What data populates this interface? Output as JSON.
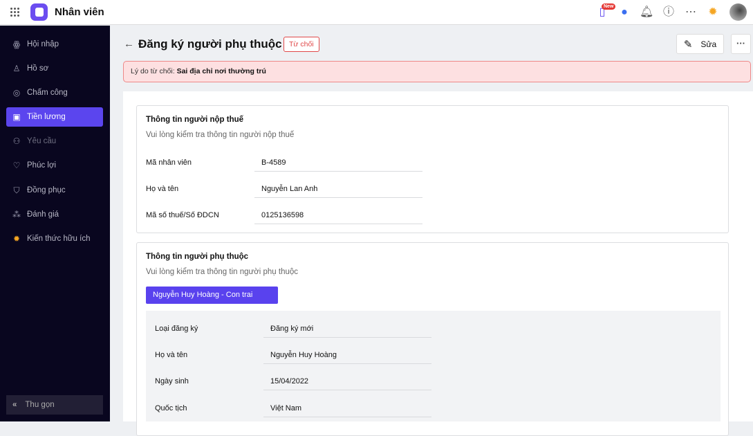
{
  "header": {
    "app_title": "Nhân viên",
    "new_badge": "New"
  },
  "sidebar": {
    "items": [
      {
        "label": "Hội nhập",
        "icon": "people-icon"
      },
      {
        "label": "Hồ sơ",
        "icon": "user-icon"
      },
      {
        "label": "Chấm công",
        "icon": "fingerprint-icon"
      },
      {
        "label": "Tiền lương",
        "icon": "wallet-icon",
        "active": true
      },
      {
        "label": "Yêu cầu",
        "icon": "request-icon"
      },
      {
        "label": "Phúc lợi",
        "icon": "handshake-icon"
      },
      {
        "label": "Đồng phục",
        "icon": "shirt-icon"
      },
      {
        "label": "Đánh giá",
        "icon": "stars-icon"
      },
      {
        "label": "Kiến thức hữu ích",
        "icon": "lightbulb-book-icon"
      }
    ],
    "collapse_label": "Thu gọn"
  },
  "page": {
    "title": "Đăng ký người phụ thuộc",
    "status": "Từ chối",
    "edit_label": "Sửa",
    "reject_label": "Lý do từ chối:",
    "reject_reason": "Sai địa chỉ nơi thường trú"
  },
  "taxpayer": {
    "title": "Thông tin người nộp thuế",
    "subtitle": "Vui lòng kiểm tra thông tin người nộp thuế",
    "fields": [
      {
        "label": "Mã nhân viên",
        "value": "B-4589"
      },
      {
        "label": "Họ và tên",
        "value": "Nguyễn Lan Anh"
      },
      {
        "label": "Mã số thuế/Số ĐDCN",
        "value": "0125136598"
      }
    ]
  },
  "dependent": {
    "title": "Thông tin người phụ thuộc",
    "subtitle": "Vui lòng kiểm tra thông tin người phụ thuộc",
    "tab": "Nguyễn Huy Hoàng - Con trai",
    "fields": [
      {
        "label": "Loại đăng ký",
        "value": "Đăng ký mới"
      },
      {
        "label": "Họ và tên",
        "value": "Nguyễn Huy Hoàng"
      },
      {
        "label": "Ngày sinh",
        "value": "15/04/2022"
      },
      {
        "label": "Quốc tịch",
        "value": "Việt Nam"
      }
    ]
  },
  "colors": {
    "accent": "#5b45ee",
    "sidebar_bg": "#09061f",
    "danger": "#e04848",
    "alert_bg": "#fde0e1"
  }
}
